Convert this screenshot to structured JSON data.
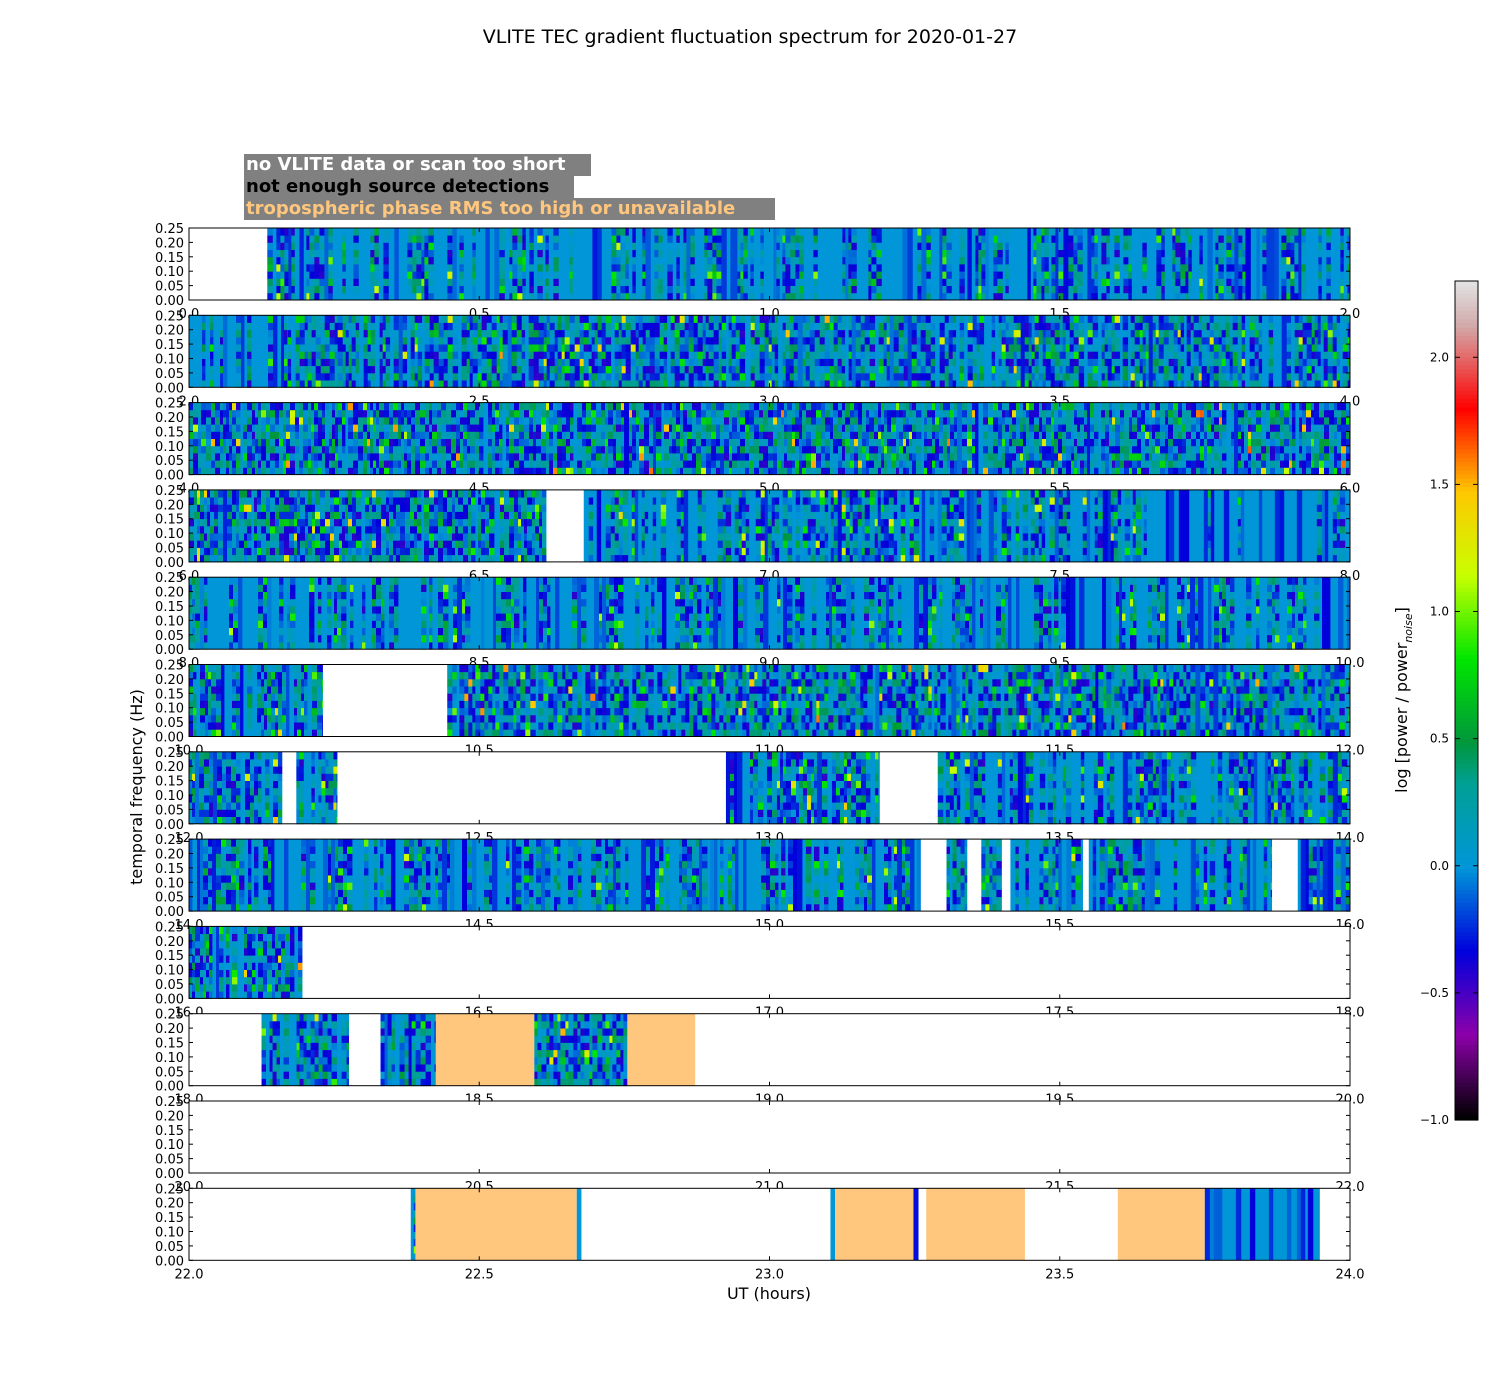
{
  "chart_data": {
    "type": "heatmap",
    "title": "VLITE TEC gradient fluctuation spectrum for 2020-01-27",
    "xlabel": "UT (hours)",
    "ylabel": "temporal frequency (Hz)",
    "colorbar": {
      "label_prefix": "log [power / power",
      "label_sub": "noise",
      "label_suffix": "]",
      "range": [
        -1.0,
        2.3
      ],
      "ticks": [
        -1.0,
        -0.5,
        0.0,
        0.5,
        1.0,
        1.5,
        2.0
      ],
      "tick_labels": [
        "−1.0",
        "−0.5",
        "0.0",
        "0.5",
        "1.0",
        "1.5",
        "2.0"
      ]
    },
    "legend": [
      {
        "label": "no VLITE data or scan too short",
        "color": "#ffffff"
      },
      {
        "label": "not enough source detections",
        "color": "#000000"
      },
      {
        "label": "tropospheric phase RMS too high or unavailable",
        "color": "#ffc67e"
      }
    ],
    "legend_background": "#808080",
    "flag_color": "#ffc67e",
    "background_value_color": "#0096d8",
    "yticks": [
      "0.00",
      "0.05",
      "0.10",
      "0.15",
      "0.20",
      "0.25"
    ],
    "ylim": [
      0,
      0.25
    ],
    "panels": [
      {
        "xlim": [
          0,
          2
        ],
        "xticks": [
          "0.0",
          "0.5",
          "1.0",
          "1.5",
          "2.0"
        ],
        "segments": [
          {
            "start": 0.135,
            "end": 2.0,
            "state": "data",
            "activity": 0.45
          }
        ]
      },
      {
        "xlim": [
          2,
          4
        ],
        "xticks": [
          "2.0",
          "2.5",
          "3.0",
          "3.5",
          "4.0"
        ],
        "segments": [
          {
            "start": 2.0,
            "end": 2.17,
            "state": "data",
            "activity": 0.2
          },
          {
            "start": 2.17,
            "end": 4.0,
            "state": "data",
            "activity": 0.85
          }
        ]
      },
      {
        "xlim": [
          4,
          6
        ],
        "xticks": [
          "4.0",
          "4.5",
          "5.0",
          "5.5",
          "6.0"
        ],
        "segments": [
          {
            "start": 4.0,
            "end": 6.0,
            "state": "data",
            "activity": 0.95
          }
        ]
      },
      {
        "xlim": [
          6,
          8
        ],
        "xticks": [
          "6.0",
          "6.5",
          "7.0",
          "7.5",
          "8.0"
        ],
        "segments": [
          {
            "start": 6.0,
            "end": 6.615,
            "state": "data",
            "activity": 0.9
          },
          {
            "start": 6.615,
            "end": 6.68,
            "state": "nodata"
          },
          {
            "start": 6.68,
            "end": 7.65,
            "state": "data",
            "activity": 0.65
          },
          {
            "start": 7.65,
            "end": 8.0,
            "state": "data",
            "activity": 0.12
          }
        ]
      },
      {
        "xlim": [
          8,
          10
        ],
        "xticks": [
          "8.0",
          "8.5",
          "9.0",
          "9.5",
          "10.0"
        ],
        "segments": [
          {
            "start": 8.0,
            "end": 10.0,
            "state": "data",
            "activity": 0.4
          }
        ]
      },
      {
        "xlim": [
          10,
          12
        ],
        "xticks": [
          "10.0",
          "10.5",
          "11.0",
          "11.5",
          "12.0"
        ],
        "segments": [
          {
            "start": 10.0,
            "end": 10.23,
            "state": "data",
            "activity": 0.85
          },
          {
            "start": 10.23,
            "end": 10.445,
            "state": "nodata"
          },
          {
            "start": 10.445,
            "end": 12.0,
            "state": "data",
            "activity": 0.9
          }
        ]
      },
      {
        "xlim": [
          12,
          14
        ],
        "xticks": [
          "12.0",
          "12.5",
          "13.0",
          "13.5",
          "14.0"
        ],
        "segments": [
          {
            "start": 12.0,
            "end": 12.16,
            "state": "data",
            "activity": 0.85
          },
          {
            "start": 12.16,
            "end": 12.185,
            "state": "nodata"
          },
          {
            "start": 12.185,
            "end": 12.255,
            "state": "data",
            "activity": 0.85
          },
          {
            "start": 12.255,
            "end": 12.925,
            "state": "nodata"
          },
          {
            "start": 12.925,
            "end": 13.19,
            "state": "data",
            "activity": 0.8
          },
          {
            "start": 13.19,
            "end": 13.29,
            "state": "nodata"
          },
          {
            "start": 13.29,
            "end": 14.0,
            "state": "data",
            "activity": 0.6
          }
        ]
      },
      {
        "xlim": [
          14,
          16
        ],
        "xticks": [
          "14.0",
          "14.5",
          "15.0",
          "15.5",
          "16.0"
        ],
        "segments": [
          {
            "start": 14.0,
            "end": 15.26,
            "state": "data",
            "activity": 0.45
          },
          {
            "start": 15.26,
            "end": 15.305,
            "state": "nodata"
          },
          {
            "start": 15.305,
            "end": 15.34,
            "state": "data",
            "activity": 0.7
          },
          {
            "start": 15.34,
            "end": 15.365,
            "state": "nodata"
          },
          {
            "start": 15.365,
            "end": 15.4,
            "state": "data",
            "activity": 0.8
          },
          {
            "start": 15.4,
            "end": 15.415,
            "state": "nodata"
          },
          {
            "start": 15.415,
            "end": 15.54,
            "state": "data",
            "activity": 0.6
          },
          {
            "start": 15.54,
            "end": 15.55,
            "state": "nodata"
          },
          {
            "start": 15.55,
            "end": 15.865,
            "state": "data",
            "activity": 0.45
          },
          {
            "start": 15.865,
            "end": 15.91,
            "state": "nodata"
          },
          {
            "start": 15.91,
            "end": 16.0,
            "state": "data",
            "activity": 0.4
          }
        ]
      },
      {
        "xlim": [
          16,
          18
        ],
        "xticks": [
          "16.0",
          "16.5",
          "17.0",
          "17.5",
          "18.0"
        ],
        "segments": [
          {
            "start": 16.0,
            "end": 16.195,
            "state": "data",
            "activity": 0.85
          }
        ]
      },
      {
        "xlim": [
          18,
          20
        ],
        "xticks": [
          "18.0",
          "18.5",
          "19.0",
          "19.5",
          "20.0"
        ],
        "segments": [
          {
            "start": 18.125,
            "end": 18.275,
            "state": "data",
            "activity": 0.85
          },
          {
            "start": 18.33,
            "end": 18.425,
            "state": "data",
            "activity": 0.85
          },
          {
            "start": 18.425,
            "end": 18.595,
            "state": "flag"
          },
          {
            "start": 18.595,
            "end": 18.755,
            "state": "data",
            "activity": 0.95
          },
          {
            "start": 18.755,
            "end": 18.872,
            "state": "flag"
          }
        ]
      },
      {
        "xlim": [
          20,
          22
        ],
        "xticks": [
          "20.0",
          "20.5",
          "21.0",
          "21.5",
          "22.0"
        ],
        "segments": []
      },
      {
        "xlim": [
          22,
          24
        ],
        "xticks": [
          "22.0",
          "22.5",
          "23.0",
          "23.5",
          "24.0"
        ],
        "segments": [
          {
            "start": 22.382,
            "end": 22.39,
            "state": "data",
            "activity": 0.3
          },
          {
            "start": 22.39,
            "end": 22.668,
            "state": "flag"
          },
          {
            "start": 22.668,
            "end": 22.676,
            "state": "data",
            "activity": 0.3
          },
          {
            "start": 23.105,
            "end": 23.113,
            "state": "data",
            "activity": 0.3
          },
          {
            "start": 23.113,
            "end": 23.248,
            "state": "flag"
          },
          {
            "start": 23.248,
            "end": 23.256,
            "state": "data",
            "activity": 0.3
          },
          {
            "start": 23.27,
            "end": 23.44,
            "state": "flag"
          },
          {
            "start": 23.6,
            "end": 23.75,
            "state": "flag"
          },
          {
            "start": 23.75,
            "end": 23.948,
            "state": "data",
            "activity": 0.0
          }
        ]
      }
    ]
  }
}
